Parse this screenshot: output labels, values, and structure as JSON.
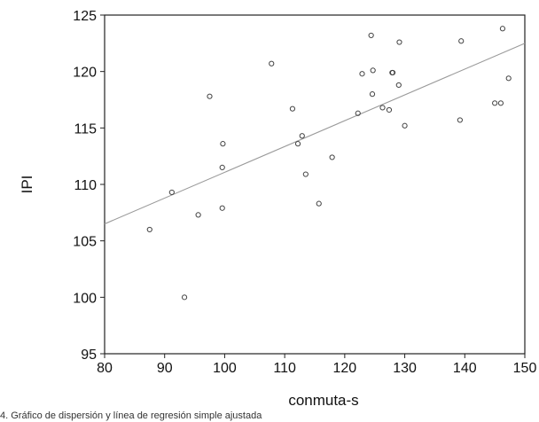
{
  "chart_data": {
    "type": "scatter",
    "title": "",
    "xlabel": "conmuta-s",
    "ylabel": "IPI",
    "xlim": [
      80,
      150
    ],
    "ylim": [
      95,
      125
    ],
    "x_ticks": [
      80,
      90,
      100,
      110,
      120,
      130,
      140,
      150
    ],
    "y_ticks": [
      95,
      100,
      105,
      110,
      115,
      120,
      125
    ],
    "grid": false,
    "legend": "none",
    "series": [
      {
        "x": [
          87.5,
          91.2,
          93.3,
          95.6,
          97.5,
          99.6,
          99.6,
          99.7,
          107.8,
          111.3,
          112.2,
          112.9,
          113.5,
          115.7,
          117.9,
          122.2,
          122.9,
          124.4,
          124.6,
          124.7,
          126.3,
          127.4,
          127.9,
          128.0,
          129.0,
          129.1,
          130.0,
          139.2,
          139.4,
          145.0,
          146.0,
          146.3,
          147.3
        ],
        "y": [
          106.0,
          109.3,
          100.0,
          107.3,
          117.8,
          107.9,
          111.5,
          113.6,
          120.7,
          116.7,
          113.6,
          114.3,
          110.9,
          108.3,
          112.4,
          116.3,
          119.8,
          123.2,
          118.0,
          120.1,
          116.8,
          116.6,
          119.9,
          119.9,
          118.8,
          122.6,
          115.2,
          115.7,
          122.7,
          117.2,
          117.2,
          123.8,
          119.4
        ]
      }
    ],
    "fit_line": {
      "x": [
        80,
        150
      ],
      "y": [
        106.5,
        122.5
      ]
    },
    "point_color": "#444444",
    "line_color": "#9a9a9a",
    "frame_color": "#222222"
  },
  "caption": "4. Gráfico de dispersión y línea de regresión simple ajustada"
}
